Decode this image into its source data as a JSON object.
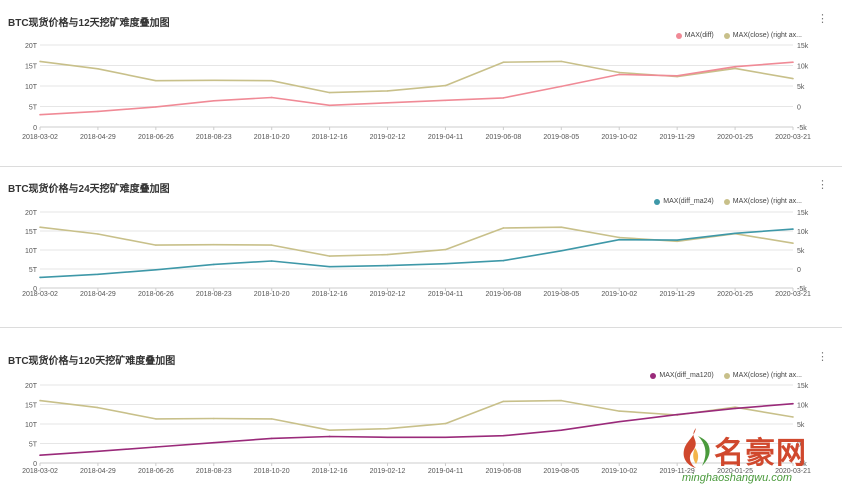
{
  "watermark": {
    "name": "名豪网",
    "url": "minghaoshangwu.com"
  },
  "colors": {
    "grid": "#e6e6e6",
    "axis_text": "#555555",
    "close_series": "#c8c08a"
  },
  "chart_data": [
    {
      "type": "line",
      "title": "BTC现货价格与12天挖矿难度叠加图",
      "x": [
        "2018-03-02",
        "2018-04-29",
        "2018-06-26",
        "2018-08-23",
        "2018-10-20",
        "2018-12-16",
        "2019-02-12",
        "2019-04-11",
        "2019-06-08",
        "2019-08-05",
        "2019-10-02",
        "2019-11-29",
        "2020-01-25",
        "2020-03-21"
      ],
      "ylim_left": [
        0,
        20
      ],
      "yticks_left": [
        "0",
        "5T",
        "10T",
        "15T",
        "20T"
      ],
      "ylim_right": [
        -5,
        15
      ],
      "yticks_right": [
        "-5k",
        "0",
        "5k",
        "10k",
        "15k"
      ],
      "legend_position": "top-right",
      "series": [
        {
          "name": "MAX(diff)",
          "axis": "left",
          "color": "#f08a96",
          "values": [
            3.0,
            3.8,
            4.9,
            6.4,
            7.2,
            5.3,
            5.9,
            6.5,
            7.1,
            9.9,
            12.8,
            12.5,
            14.7,
            15.8
          ]
        },
        {
          "name": "MAX(close) (right ax...",
          "axis": "right",
          "color": "#c8c08a",
          "values": [
            11.0,
            9.2,
            6.3,
            6.4,
            6.3,
            3.4,
            3.8,
            5.1,
            10.8,
            11.0,
            8.3,
            7.3,
            9.3,
            6.8
          ]
        }
      ]
    },
    {
      "type": "line",
      "title": "BTC现货价格与24天挖矿难度叠加图",
      "x": [
        "2018-03-02",
        "2018-04-29",
        "2018-06-26",
        "2018-08-23",
        "2018-10-20",
        "2018-12-16",
        "2019-02-12",
        "2019-04-11",
        "2019-06-08",
        "2019-08-05",
        "2019-10-02",
        "2019-11-29",
        "2020-01-25",
        "2020-03-21"
      ],
      "ylim_left": [
        0,
        20
      ],
      "yticks_left": [
        "0",
        "5T",
        "10T",
        "15T",
        "20T"
      ],
      "ylim_right": [
        -5,
        15
      ],
      "yticks_right": [
        "-5k",
        "0",
        "5k",
        "10k",
        "15k"
      ],
      "legend_position": "top-right",
      "series": [
        {
          "name": "MAX(diff_ma24)",
          "axis": "left",
          "color": "#3e98a8",
          "values": [
            2.8,
            3.6,
            4.8,
            6.2,
            7.1,
            5.6,
            5.9,
            6.4,
            7.2,
            9.8,
            12.7,
            12.6,
            14.4,
            15.5
          ]
        },
        {
          "name": "MAX(close) (right ax...",
          "axis": "right",
          "color": "#c8c08a",
          "values": [
            11.0,
            9.2,
            6.3,
            6.4,
            6.3,
            3.4,
            3.8,
            5.1,
            10.8,
            11.0,
            8.3,
            7.3,
            9.3,
            6.8
          ]
        }
      ]
    },
    {
      "type": "line",
      "title": "BTC现货价格与120天挖矿难度叠加图",
      "x": [
        "2018-03-02",
        "2018-04-29",
        "2018-06-26",
        "2018-08-23",
        "2018-10-20",
        "2018-12-16",
        "2019-02-12",
        "2019-04-11",
        "2019-06-08",
        "2019-08-05",
        "2019-10-02",
        "2019-11-29",
        "2020-01-25",
        "2020-03-21"
      ],
      "ylim_left": [
        0,
        20
      ],
      "yticks_left": [
        "0",
        "5T",
        "10T",
        "15T",
        "20T"
      ],
      "ylim_right": [
        -5,
        15
      ],
      "yticks_right": [
        "-5k",
        "0",
        "5k",
        "10k",
        "15k"
      ],
      "legend_position": "top-right",
      "series": [
        {
          "name": "MAX(diff_ma120)",
          "axis": "left",
          "color": "#9a2a7a",
          "values": [
            2.0,
            3.0,
            4.1,
            5.2,
            6.3,
            6.8,
            6.6,
            6.6,
            7.0,
            8.4,
            10.6,
            12.4,
            14.0,
            15.2
          ]
        },
        {
          "name": "MAX(close) (right ax...",
          "axis": "right",
          "color": "#c8c08a",
          "values": [
            11.0,
            9.2,
            6.3,
            6.4,
            6.3,
            3.4,
            3.8,
            5.1,
            10.8,
            11.0,
            8.3,
            7.3,
            9.3,
            6.8
          ]
        }
      ]
    }
  ]
}
